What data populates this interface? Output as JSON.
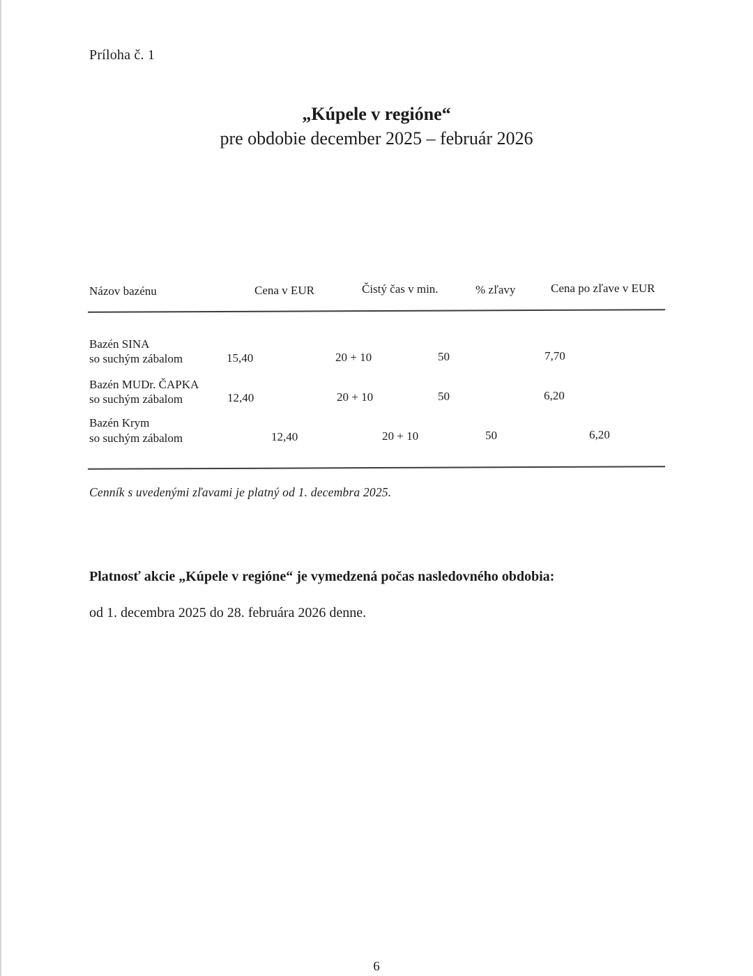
{
  "page": {
    "attachment_label": "Príloha č. 1",
    "title": "„Kúpele v regióne“",
    "subtitle": "pre obdobie december 2025 – február 2026",
    "page_number": "6"
  },
  "table": {
    "headers": [
      "Názov bazénu",
      "Cena v EUR",
      "Čistý čas v min.",
      "% zľavy",
      "Cena po zľave v EUR"
    ],
    "rows": [
      {
        "name_line1": "Bazén SINA",
        "name_line2": "so suchým zábalom",
        "price_eur": "15,40",
        "net_time_min": "20 + 10",
        "discount_pct": "50",
        "price_after_discount": "7,70"
      },
      {
        "name_line1": "Bazén MUDr. ČAPKA",
        "name_line2": "so suchým zábalom",
        "price_eur": "12,40",
        "net_time_min": "20 + 10",
        "discount_pct": "50",
        "price_after_discount": "6,20"
      },
      {
        "name_line1": "Bazén Krym",
        "name_line2": "so suchým zábalom",
        "price_eur": "12,40",
        "net_time_min": "20 + 10",
        "discount_pct": "50",
        "price_after_discount": "6,20"
      }
    ],
    "footnote": "Cenník s uvedenými zľavami je platný od 1. decembra 2025."
  },
  "validity": {
    "heading": "Platnosť akcie „Kúpele v regióne“ je vymedzená počas nasledovného obdobia:",
    "period": "od 1. decembra 2025 do 28. februára 2026 denne."
  }
}
